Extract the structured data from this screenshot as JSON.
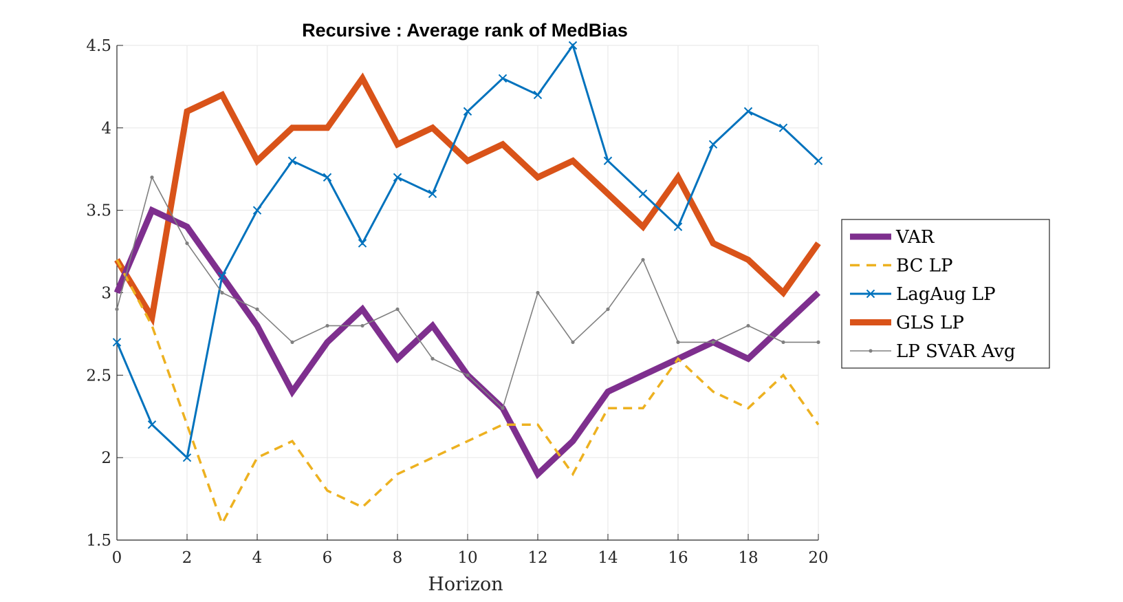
{
  "chart_data": {
    "type": "line",
    "title": "Recursive : Average rank of MedBias",
    "xlabel": "Horizon",
    "ylabel": "",
    "xlim": [
      0,
      20
    ],
    "ylim": [
      1.5,
      4.5
    ],
    "x_ticks": [
      0,
      2,
      4,
      6,
      8,
      10,
      12,
      14,
      16,
      18,
      20
    ],
    "y_ticks": [
      1.5,
      2,
      2.5,
      3,
      3.5,
      4,
      4.5
    ],
    "grid": true,
    "legend_position": "outside-right",
    "x": [
      0,
      1,
      2,
      3,
      4,
      5,
      6,
      7,
      8,
      9,
      10,
      11,
      12,
      13,
      14,
      15,
      16,
      17,
      18,
      19,
      20
    ],
    "series": [
      {
        "name": "VAR",
        "color": "#7E2F8E",
        "style": "solid-thick",
        "marker": "none",
        "values": [
          3.0,
          3.5,
          3.4,
          3.1,
          2.8,
          2.4,
          2.7,
          2.9,
          2.6,
          2.8,
          2.5,
          2.3,
          1.9,
          2.1,
          2.4,
          2.5,
          2.6,
          2.7,
          2.6,
          2.8,
          3.0
        ]
      },
      {
        "name": "BC LP",
        "color": "#EDB120",
        "style": "dashed",
        "marker": "none",
        "values": [
          3.2,
          2.8,
          2.2,
          1.6,
          2.0,
          2.1,
          1.8,
          1.7,
          1.9,
          2.0,
          2.1,
          2.2,
          2.2,
          1.9,
          2.3,
          2.3,
          2.6,
          2.4,
          2.3,
          2.5,
          2.2
        ]
      },
      {
        "name": "LagAug LP",
        "color": "#0072BD",
        "style": "solid",
        "marker": "x",
        "values": [
          2.7,
          2.2,
          2.0,
          3.1,
          3.5,
          3.8,
          3.7,
          3.3,
          3.7,
          3.6,
          4.1,
          4.3,
          4.2,
          4.5,
          3.8,
          3.6,
          3.4,
          3.9,
          4.1,
          4.0,
          3.8
        ]
      },
      {
        "name": "GLS LP",
        "color": "#D95319",
        "style": "solid-thick",
        "marker": "none",
        "values": [
          3.2,
          2.85,
          4.1,
          4.2,
          3.8,
          4.0,
          4.0,
          4.3,
          3.9,
          4.0,
          3.8,
          3.9,
          3.7,
          3.8,
          3.6,
          3.4,
          3.7,
          3.3,
          3.2,
          3.0,
          3.3
        ]
      },
      {
        "name": "LP SVAR Avg",
        "color": "#808080",
        "style": "solid-thin",
        "marker": "dot",
        "values": [
          2.9,
          3.7,
          3.3,
          3.0,
          2.9,
          2.7,
          2.8,
          2.8,
          2.9,
          2.6,
          2.5,
          2.3,
          3.0,
          2.7,
          2.9,
          3.2,
          2.7,
          2.7,
          2.8,
          2.7,
          2.7
        ]
      }
    ]
  }
}
